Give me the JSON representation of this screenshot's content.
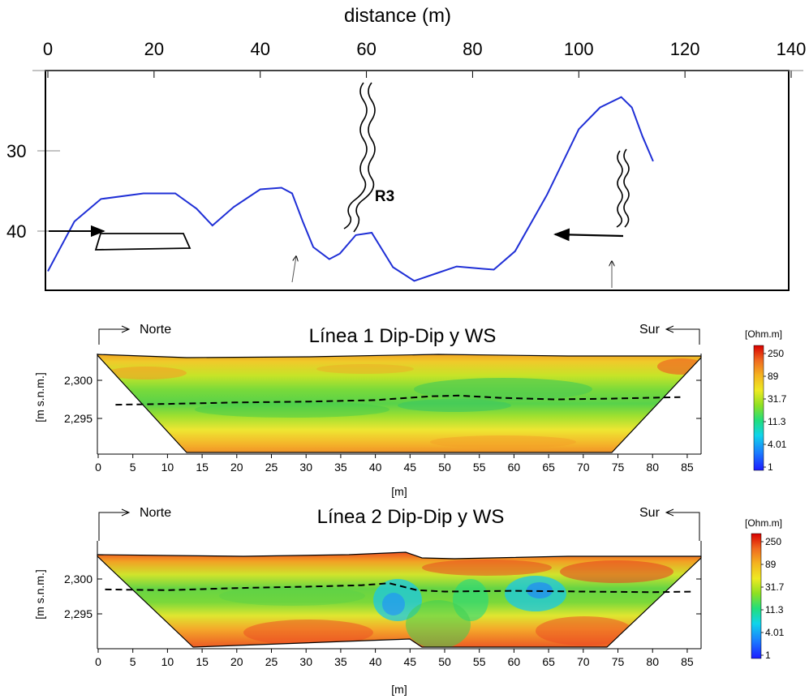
{
  "colors": {
    "profile_line": "#1f2fd6",
    "frame": "#000000",
    "water_table": "#000000",
    "colorbar": [
      "#1c1cff",
      "#1c8cff",
      "#10d8e8",
      "#20e070",
      "#90e020",
      "#ecec20",
      "#f4b020",
      "#f07020",
      "#e83020",
      "#d80000"
    ]
  },
  "chart_data": [
    {
      "type": "line",
      "title": "",
      "xlabel": "distance (m)",
      "ylabel": "",
      "xlim": [
        0,
        140
      ],
      "x_ticks": [
        "0",
        "20",
        "40",
        "60",
        "80",
        "100",
        "120",
        "140"
      ],
      "y_ticks": [
        "30",
        "40"
      ],
      "ylim": [
        22,
        48
      ],
      "series": [
        {
          "name": "",
          "x": [
            0,
            2,
            5,
            10,
            18,
            24,
            28,
            31,
            35,
            40,
            44,
            46,
            48,
            50,
            53,
            55,
            58,
            61,
            65,
            69,
            73,
            77,
            82,
            84,
            88,
            94,
            100,
            104,
            108,
            110,
            112,
            114
          ],
          "y": [
            45,
            42.5,
            38.8,
            36,
            35.3,
            35.3,
            37.2,
            39.3,
            37,
            34.8,
            34.6,
            35.3,
            38.8,
            42,
            43.5,
            42.8,
            40.5,
            40.2,
            44.5,
            46.2,
            45.3,
            44.4,
            44.7,
            44.8,
            42.5,
            35.5,
            27.3,
            24.6,
            23.3,
            24.6,
            28.2,
            31.3
          ]
        }
      ],
      "annotations": [
        "R3"
      ]
    },
    {
      "type": "heatmap",
      "title": "Línea 1 Dip-Dip y WS",
      "xlabel": "[m]",
      "ylabel": "[m s.n.m.]",
      "x_ticks": [
        "0",
        "5",
        "10",
        "15",
        "20",
        "25",
        "30",
        "35",
        "40",
        "45",
        "50",
        "55",
        "60",
        "65",
        "70",
        "75",
        "80",
        "85"
      ],
      "y_ticks": [
        "2,300",
        "2,295"
      ],
      "xlim": [
        0,
        87
      ],
      "left_label": "Norte",
      "right_label": "Sur",
      "colorbar_unit": "[Ohm.m]",
      "colorbar_ticks": [
        "250",
        "89",
        "31.7",
        "11.3",
        "4.01",
        "1"
      ],
      "water_table": {
        "x": [
          2.5,
          10,
          20,
          30,
          40,
          48,
          52,
          58,
          66,
          74,
          84
        ],
        "y": [
          2296.8,
          2296.9,
          2297.1,
          2297.2,
          2297.4,
          2297.9,
          2298.0,
          2297.7,
          2297.5,
          2297.6,
          2297.8
        ]
      }
    },
    {
      "type": "heatmap",
      "title": "Línea 2 Dip-Dip y WS",
      "xlabel": "[m]",
      "ylabel": "[m s.n.m.]",
      "x_ticks": [
        "0",
        "5",
        "10",
        "15",
        "20",
        "25",
        "30",
        "35",
        "40",
        "45",
        "50",
        "55",
        "60",
        "65",
        "70",
        "75",
        "80",
        "85"
      ],
      "y_ticks": [
        "2,300",
        "2,295"
      ],
      "xlim": [
        0,
        87
      ],
      "left_label": "Norte",
      "right_label": "Sur",
      "colorbar_unit": "[Ohm.m]",
      "colorbar_ticks": [
        "250",
        "89",
        "31.7",
        "11.3",
        "4.01",
        "1"
      ],
      "water_table": {
        "x": [
          1,
          10,
          20,
          30,
          38,
          42,
          46,
          50,
          60,
          70,
          80,
          86
        ],
        "y": [
          2298.5,
          2298.4,
          2298.7,
          2298.9,
          2299.1,
          2299.4,
          2298.4,
          2298.2,
          2298.3,
          2298.2,
          2298.1,
          2298.2
        ]
      }
    }
  ]
}
